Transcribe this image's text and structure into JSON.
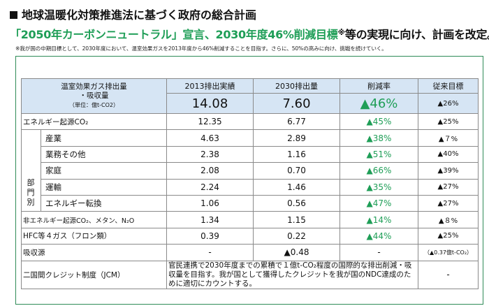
{
  "title": "地球温暖化対策推進法に基づく政府の総合計画",
  "headline": {
    "green": "「2050年カーボンニュートラル」宣言、2030年度46%削減目標",
    "note_mark": "※",
    "rest": "等の実現に向け、計画を改定。"
  },
  "footnote": "※我が国の中期目標として、2030年度において、温室効果ガスを2013年度から46%削減することを目指す。さらに、50%の高みに向け、挑戦を続けていく。",
  "table": {
    "header": {
      "label_line1": "温室効果ガス排出量",
      "label_line2": "・吸収量",
      "label_unit": "（単位：億t-CO2）",
      "col_2013": "2013排出実績",
      "col_2030": "2030排出量",
      "col_rate": "削減率",
      "col_prev": "従来目標"
    },
    "total": {
      "v2013": "14.08",
      "v2030": "7.60",
      "rate": "▲46%",
      "prev": "▲26%"
    },
    "energy": {
      "label": "エネルギー起源CO₂",
      "v2013": "12.35",
      "v2030": "6.77",
      "rate": "▲45%",
      "prev": "▲25%"
    },
    "sector_label": [
      "部",
      "門",
      "別"
    ],
    "sectors": [
      {
        "label": "産業",
        "v2013": "4.63",
        "v2030": "2.89",
        "rate": "▲38%",
        "prev": "▲７%"
      },
      {
        "label": "業務その他",
        "v2013": "2.38",
        "v2030": "1.16",
        "rate": "▲51%",
        "prev": "▲40%"
      },
      {
        "label": "家庭",
        "v2013": "2.08",
        "v2030": "0.70",
        "rate": "▲66%",
        "prev": "▲39%"
      },
      {
        "label": "運輸",
        "v2013": "2.24",
        "v2030": "1.46",
        "rate": "▲35%",
        "prev": "▲27%"
      },
      {
        "label": "エネルギー転換",
        "v2013": "1.06",
        "v2030": "0.56",
        "rate": "▲47%",
        "prev": "▲27%"
      }
    ],
    "non_energy": {
      "label": "非エネルギー起源CO₂、メタン、N₂O",
      "v2013": "1.34",
      "v2030": "1.15",
      "rate": "▲14%",
      "prev": "▲８%"
    },
    "hfc": {
      "label": "HFC等４ガス（フロン類）",
      "v2013": "0.39",
      "v2030": "0.22",
      "rate": "▲44%",
      "prev": "▲25%"
    },
    "sink": {
      "label": "吸収源",
      "v2013": "-",
      "v2030": "▲0.48",
      "rate": "-",
      "prev": "（▲0.37億t-CO₂）"
    },
    "jcm": {
      "label": "二国間クレジット制度（JCM）",
      "note": "官民連携で2030年度までの累積で１億t-CO₂程度の国際的な排出削減・吸収量を目指す。我が国として獲得したクレジットを我が国のNDC達成のために適切にカウントする。",
      "prev": "-"
    }
  },
  "colors": {
    "green": "#1f9e57",
    "header_bg": "#d6e5f4",
    "frame": "#2e8b57"
  }
}
